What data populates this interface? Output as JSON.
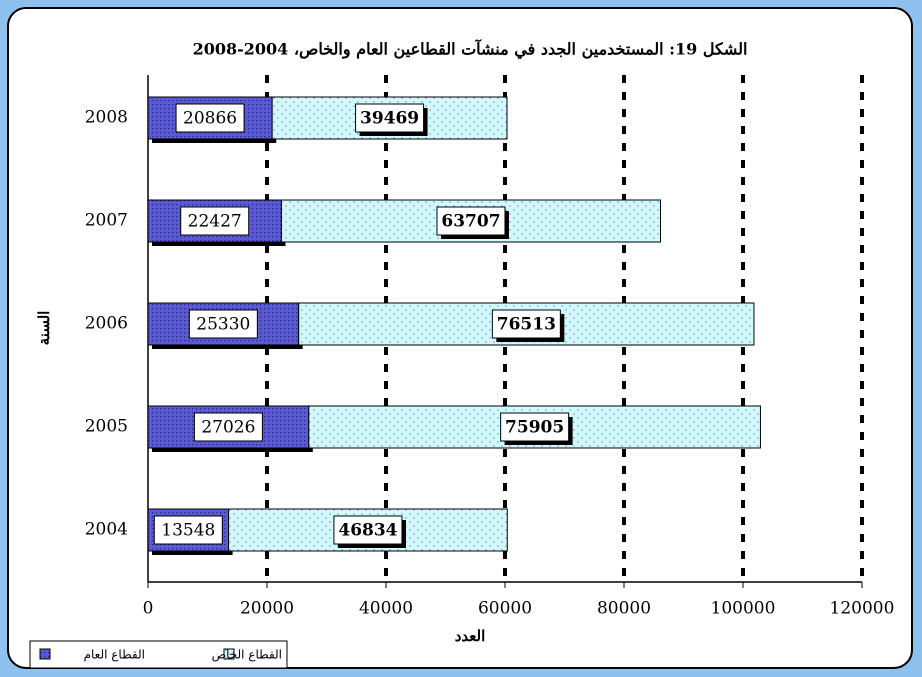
{
  "chart_data": {
    "type": "stacked_bar_horizontal",
    "title": "الشكل 19: المستخدمين الجدد في منشآت القطاعين العام والخاص، 2004-2008",
    "x_label": "العدد",
    "y_label": "السنة",
    "categories": [
      "2004",
      "2005",
      "2006",
      "2007",
      "2008"
    ],
    "series": [
      {
        "name": "القطاع العام",
        "color": "#5a5ad6",
        "values": [
          13548,
          27026,
          25330,
          22427,
          20866
        ]
      },
      {
        "name": "القطاع الخاص",
        "color": "#ccffff",
        "values": [
          46834,
          75905,
          76513,
          63707,
          39469
        ]
      }
    ],
    "xlim": [
      0,
      120000
    ],
    "xticks": [
      0,
      20000,
      40000,
      60000,
      80000,
      100000,
      120000
    ],
    "grid": true,
    "legend": "bottom-left"
  }
}
